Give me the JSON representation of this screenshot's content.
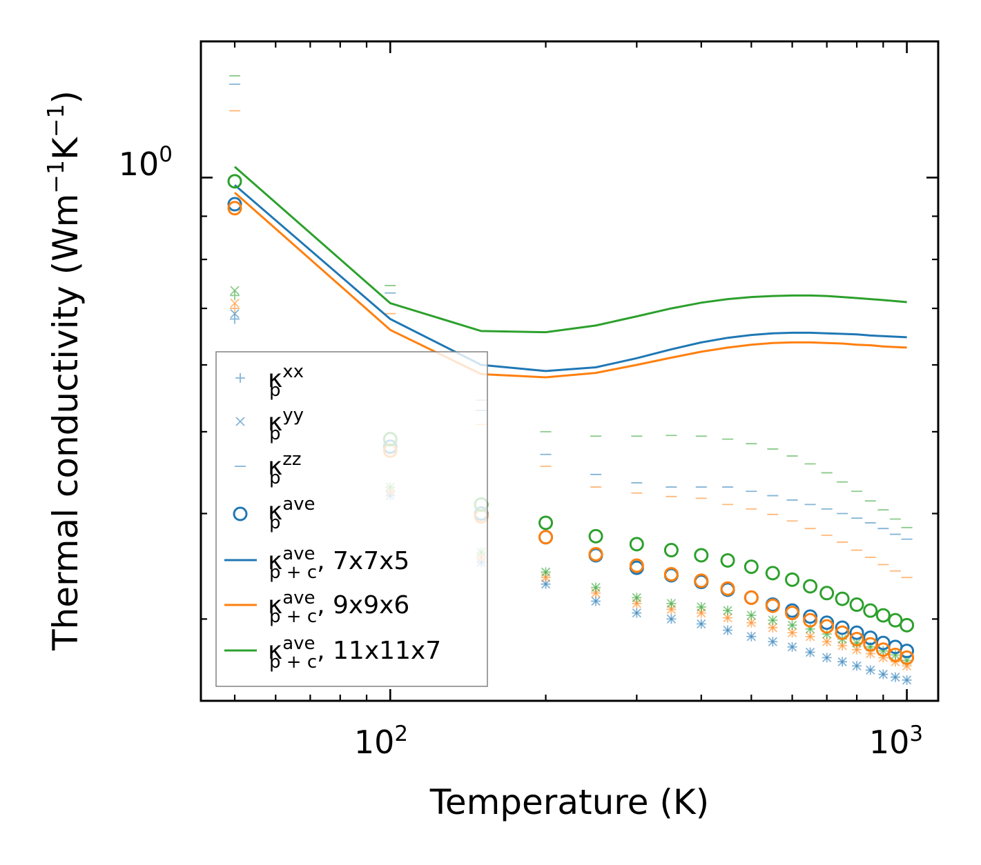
{
  "chart_data": {
    "type": "scatter",
    "scale": {
      "x": "log",
      "y": "log"
    },
    "xlabel": "Temperature (K)",
    "ylabel": {
      "base": "Thermal conductivity (Wm",
      "exp1": "−1",
      "mid": "K",
      "exp2": "−1",
      "end": ")"
    },
    "xlim": [
      43,
      1150
    ],
    "ylim": [
      0.24,
      1.45
    ],
    "x_ticks": [
      {
        "base": "10",
        "exp": "2",
        "value": 100
      },
      {
        "base": "10",
        "exp": "3",
        "value": 1000
      }
    ],
    "y_ticks": [
      {
        "label": "10",
        "exp": "0",
        "value": 1.0
      }
    ],
    "x": [
      50,
      100,
      150,
      200,
      250,
      300,
      350,
      400,
      450,
      500,
      550,
      600,
      650,
      700,
      750,
      800,
      850,
      900,
      950,
      1000
    ],
    "series": [
      {
        "name": "k_p_xx_7x7x5",
        "group": "xx",
        "color": "#1f77b4",
        "marker": "+",
        "values": [
          0.68,
          0.42,
          0.35,
          0.33,
          0.315,
          0.305,
          0.3,
          0.296,
          0.291,
          0.286,
          0.282,
          0.278,
          0.274,
          0.27,
          0.267,
          0.264,
          0.261,
          0.258,
          0.256,
          0.254
        ]
      },
      {
        "name": "k_p_xx_9x9x6",
        "group": "xx",
        "color": "#ff7f0e",
        "marker": "+",
        "values": [
          0.7,
          0.425,
          0.355,
          0.336,
          0.322,
          0.313,
          0.308,
          0.305,
          0.301,
          0.297,
          0.293,
          0.289,
          0.286,
          0.282,
          0.279,
          0.276,
          0.273,
          0.27,
          0.267,
          0.264
        ]
      },
      {
        "name": "k_p_xx_11x11x7",
        "group": "xx",
        "color": "#2ca02c",
        "marker": "+",
        "values": [
          0.725,
          0.43,
          0.36,
          0.341,
          0.327,
          0.318,
          0.313,
          0.31,
          0.307,
          0.303,
          0.299,
          0.295,
          0.292,
          0.288,
          0.284,
          0.281,
          0.278,
          0.275,
          0.272,
          0.268
        ]
      },
      {
        "name": "k_p_yy_7x7x5",
        "group": "yy",
        "color": "#1f77b4",
        "marker": "x",
        "values": [
          0.69,
          0.42,
          0.35,
          0.33,
          0.315,
          0.305,
          0.3,
          0.296,
          0.291,
          0.286,
          0.282,
          0.278,
          0.274,
          0.27,
          0.267,
          0.264,
          0.261,
          0.258,
          0.256,
          0.254
        ]
      },
      {
        "name": "k_p_yy_9x9x6",
        "group": "yy",
        "color": "#ff7f0e",
        "marker": "x",
        "values": [
          0.71,
          0.425,
          0.355,
          0.336,
          0.322,
          0.313,
          0.308,
          0.305,
          0.301,
          0.297,
          0.293,
          0.289,
          0.286,
          0.282,
          0.279,
          0.276,
          0.273,
          0.27,
          0.267,
          0.264
        ]
      },
      {
        "name": "k_p_yy_11x11x7",
        "group": "yy",
        "color": "#2ca02c",
        "marker": "x",
        "values": [
          0.735,
          0.43,
          0.36,
          0.341,
          0.327,
          0.318,
          0.313,
          0.31,
          0.307,
          0.303,
          0.299,
          0.295,
          0.292,
          0.288,
          0.284,
          0.281,
          0.278,
          0.275,
          0.272,
          0.268
        ]
      },
      {
        "name": "k_p_zz_7x7x5",
        "group": "zz",
        "color": "#1f77b4",
        "marker": "_",
        "values": [
          1.29,
          0.73,
          0.53,
          0.47,
          0.445,
          0.435,
          0.43,
          0.43,
          0.43,
          0.425,
          0.42,
          0.415,
          0.41,
          0.405,
          0.4,
          0.395,
          0.39,
          0.384,
          0.378,
          0.373
        ]
      },
      {
        "name": "k_p_zz_9x9x6",
        "group": "zz",
        "color": "#ff7f0e",
        "marker": "_",
        "values": [
          1.2,
          0.69,
          0.51,
          0.455,
          0.43,
          0.423,
          0.419,
          0.417,
          0.41,
          0.405,
          0.399,
          0.392,
          0.384,
          0.377,
          0.37,
          0.362,
          0.355,
          0.348,
          0.342,
          0.336
        ]
      },
      {
        "name": "k_p_zz_11x11x7",
        "group": "zz",
        "color": "#2ca02c",
        "marker": "_",
        "values": [
          1.32,
          0.745,
          0.545,
          0.5,
          0.494,
          0.494,
          0.495,
          0.494,
          0.49,
          0.484,
          0.477,
          0.468,
          0.458,
          0.447,
          0.436,
          0.425,
          0.414,
          0.404,
          0.394,
          0.385
        ]
      },
      {
        "name": "k_p_ave_7x7x5",
        "group": "ave",
        "color": "#1f77b4",
        "marker": "o",
        "values": [
          0.93,
          0.48,
          0.4,
          0.375,
          0.357,
          0.345,
          0.338,
          0.332,
          0.325,
          0.318,
          0.312,
          0.307,
          0.302,
          0.297,
          0.293,
          0.289,
          0.285,
          0.281,
          0.278,
          0.275
        ]
      },
      {
        "name": "k_p_ave_9x9x6",
        "group": "ave",
        "color": "#ff7f0e",
        "marker": "o",
        "values": [
          0.92,
          0.475,
          0.397,
          0.375,
          0.358,
          0.347,
          0.339,
          0.333,
          0.326,
          0.318,
          0.311,
          0.305,
          0.299,
          0.294,
          0.289,
          0.284,
          0.28,
          0.276,
          0.272,
          0.27
        ]
      },
      {
        "name": "k_p_ave_11x11x7",
        "group": "ave",
        "color": "#2ca02c",
        "marker": "o",
        "values": [
          0.99,
          0.49,
          0.41,
          0.39,
          0.376,
          0.368,
          0.362,
          0.357,
          0.352,
          0.346,
          0.34,
          0.334,
          0.328,
          0.322,
          0.317,
          0.312,
          0.307,
          0.303,
          0.299,
          0.295
        ]
      },
      {
        "name": "k_p+c_ave_7x7x5",
        "group": "ave_pc",
        "color": "#1f77b4",
        "marker": "line",
        "values": [
          0.98,
          0.68,
          0.6,
          0.59,
          0.596,
          0.611,
          0.626,
          0.638,
          0.646,
          0.651,
          0.654,
          0.655,
          0.655,
          0.654,
          0.653,
          0.652,
          0.65,
          0.649,
          0.648,
          0.647
        ]
      },
      {
        "name": "k_p+c_ave_9x9x6",
        "group": "ave_pc",
        "color": "#ff7f0e",
        "marker": "line",
        "values": [
          0.96,
          0.66,
          0.585,
          0.58,
          0.587,
          0.6,
          0.612,
          0.622,
          0.629,
          0.634,
          0.637,
          0.638,
          0.638,
          0.637,
          0.636,
          0.634,
          0.633,
          0.631,
          0.63,
          0.629
        ]
      },
      {
        "name": "k_p+c_ave_11x11x7",
        "group": "ave_pc",
        "color": "#2ca02c",
        "marker": "line",
        "values": [
          1.03,
          0.71,
          0.658,
          0.656,
          0.668,
          0.685,
          0.7,
          0.711,
          0.718,
          0.722,
          0.724,
          0.725,
          0.725,
          0.724,
          0.722,
          0.72,
          0.718,
          0.716,
          0.714,
          0.712
        ]
      }
    ],
    "legend": {
      "position": "lower-left",
      "entries": [
        {
          "marker": "+",
          "color": "#1f77b4",
          "symbol": "κ",
          "sub": "p",
          "sup": "xx",
          "suffix": ""
        },
        {
          "marker": "x",
          "color": "#1f77b4",
          "symbol": "κ",
          "sub": "p",
          "sup": "yy",
          "suffix": ""
        },
        {
          "marker": "_",
          "color": "#1f77b4",
          "symbol": "κ",
          "sub": "p",
          "sup": "zz",
          "suffix": ""
        },
        {
          "marker": "o",
          "color": "#1f77b4",
          "symbol": "κ",
          "sub": "p",
          "sup": "ave",
          "suffix": ""
        },
        {
          "marker": "line",
          "color": "#1f77b4",
          "symbol": "κ",
          "sub": "p + c",
          "sup": "ave",
          "suffix": ", 7x7x5"
        },
        {
          "marker": "line",
          "color": "#ff7f0e",
          "symbol": "κ",
          "sub": "p + c",
          "sup": "ave",
          "suffix": ", 9x9x6"
        },
        {
          "marker": "line",
          "color": "#2ca02c",
          "symbol": "κ",
          "sub": "p + c",
          "sup": "ave",
          "suffix": ", 11x11x7"
        }
      ]
    }
  }
}
